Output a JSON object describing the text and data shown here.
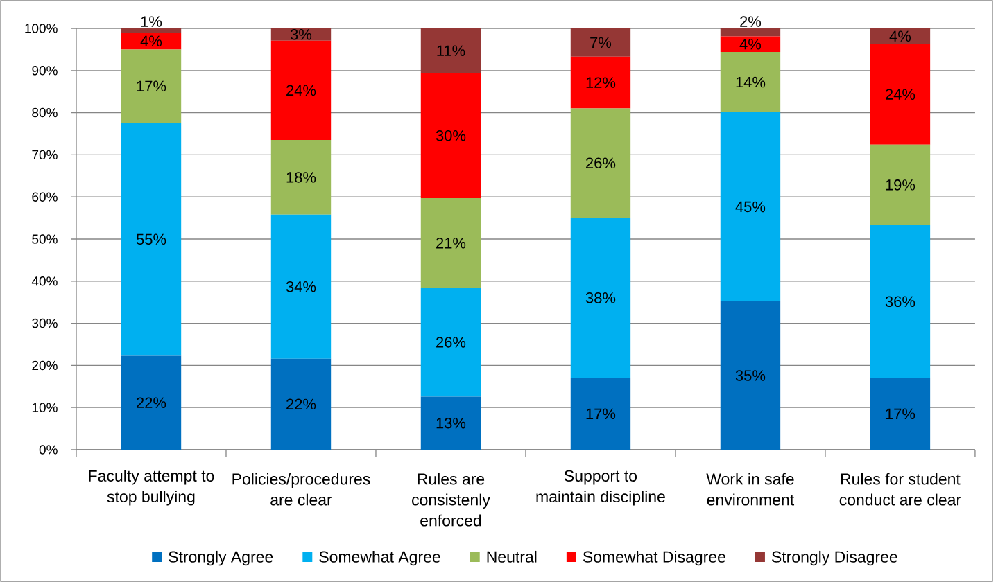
{
  "chart_data": {
    "type": "bar",
    "stacked": true,
    "categories": [
      "Faculty attempt to stop bullying",
      "Policies/procedures are clear",
      "Rules are consistenly enforced",
      "Support to maintain discipline",
      "Work in safe environment",
      "Rules for student conduct are clear"
    ],
    "series": [
      {
        "name": "Strongly Agree",
        "color": "#0070c0",
        "values": [
          22.3,
          21.6,
          12.6,
          17.0,
          35.2,
          17.0
        ],
        "value_labels": [
          "22%",
          "22%",
          "13%",
          "17%",
          "35%",
          "17%"
        ]
      },
      {
        "name": "Somewhat Agree",
        "color": "#00b0f0",
        "values": [
          55.3,
          34.2,
          25.8,
          38.1,
          44.9,
          36.3
        ],
        "value_labels": [
          "55%",
          "34%",
          "26%",
          "38%",
          "45%",
          "36%"
        ]
      },
      {
        "name": "Neutral",
        "color": "#9bbb59",
        "values": [
          17.4,
          17.7,
          21.3,
          25.9,
          14.3,
          19.1
        ],
        "value_labels": [
          "17%",
          "18%",
          "21%",
          "26%",
          "14%",
          "19%"
        ]
      },
      {
        "name": "Somewhat Disagree",
        "color": "#ff0000",
        "values": [
          4.0,
          23.6,
          29.7,
          12.3,
          3.7,
          23.9
        ],
        "value_labels": [
          "4%",
          "24%",
          "30%",
          "12%",
          "4%",
          "24%"
        ]
      },
      {
        "name": "Strongly Disagree",
        "color": "#953735",
        "values": [
          1.0,
          2.9,
          10.6,
          6.7,
          1.9,
          3.7
        ],
        "value_labels": [
          "1%",
          "3%",
          "11%",
          "7%",
          "2%",
          "4%"
        ]
      }
    ],
    "ylim": [
      0,
      100
    ],
    "yticks": [
      {
        "value": 0,
        "label": "0%"
      },
      {
        "value": 10,
        "label": "10%"
      },
      {
        "value": 20,
        "label": "20%"
      },
      {
        "value": 30,
        "label": "30%"
      },
      {
        "value": 40,
        "label": "40%"
      },
      {
        "value": 50,
        "label": "50%"
      },
      {
        "value": 60,
        "label": "60%"
      },
      {
        "value": 70,
        "label": "70%"
      },
      {
        "value": 80,
        "label": "80%"
      },
      {
        "value": 90,
        "label": "90%"
      },
      {
        "value": 100,
        "label": "100%"
      }
    ],
    "grid": "y",
    "legend": "bottom"
  }
}
